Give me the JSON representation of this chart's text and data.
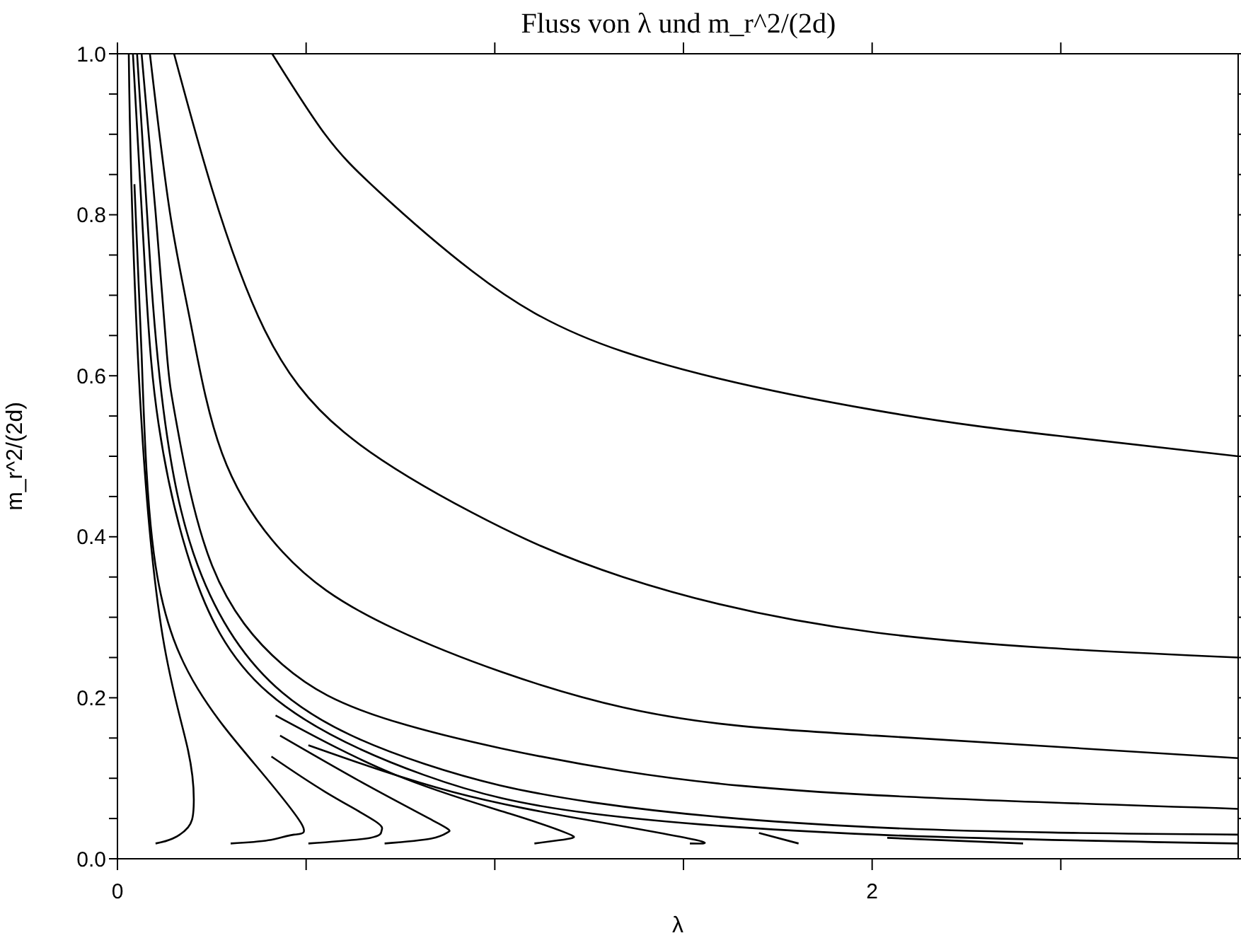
{
  "chart_data": {
    "type": "line",
    "title": "Fluss von λ und m_r^2/(2d)",
    "xlabel": "λ",
    "ylabel": "m_r^2/(2d)",
    "xlim": [
      0,
      2.97
    ],
    "ylim": [
      0,
      1
    ],
    "xticks": [
      0,
      {
        "value": 0.5,
        "label": null
      },
      {
        "value": 1,
        "label": null
      },
      {
        "value": 1.5,
        "label": null
      },
      2,
      {
        "value": 2.5,
        "label": null
      }
    ],
    "yticks": [
      {
        "value": 0,
        "label": "0.0"
      },
      {
        "value": 0.05,
        "label": null
      },
      {
        "value": 0.1,
        "label": null
      },
      {
        "value": 0.15,
        "label": null
      },
      {
        "value": 0.2,
        "label": "0.2"
      },
      {
        "value": 0.25,
        "label": null
      },
      {
        "value": 0.3,
        "label": null
      },
      {
        "value": 0.35,
        "label": null
      },
      {
        "value": 0.4,
        "label": "0.4"
      },
      {
        "value": 0.45,
        "label": null
      },
      {
        "value": 0.5,
        "label": null
      },
      {
        "value": 0.55,
        "label": null
      },
      {
        "value": 0.6,
        "label": "0.6"
      },
      {
        "value": 0.65,
        "label": null
      },
      {
        "value": 0.7,
        "label": null
      },
      {
        "value": 0.75,
        "label": null
      },
      {
        "value": 0.8,
        "label": "0.8"
      },
      {
        "value": 0.85,
        "label": null
      },
      {
        "value": 0.9,
        "label": null
      },
      {
        "value": 0.95,
        "label": null
      },
      {
        "value": 1,
        "label": "1.0"
      }
    ],
    "grid": false,
    "legend": false,
    "marker": "none",
    "line_style": "solid",
    "series": [
      {
        "color": "#000000",
        "x": [
          0.41,
          0.55,
          0.69,
          0.94,
          1.34,
          2.01,
          2.5,
          2.97
        ],
        "values": [
          1.0,
          0.9,
          0.83,
          0.73,
          0.63,
          0.557,
          0.525,
          0.5
        ]
      },
      {
        "color": "#000000",
        "x": [
          0.15,
          0.25,
          0.39,
          0.6,
          0.94,
          1.34,
          2.01,
          2.97
        ],
        "values": [
          1.0,
          0.833,
          0.657,
          0.53,
          0.43,
          0.35,
          0.281,
          0.25
        ]
      },
      {
        "color": "#000000",
        "x": [
          0.086,
          0.139,
          0.195,
          0.277,
          0.438,
          0.737,
          1.34,
          2.01,
          2.97
        ],
        "values": [
          1.0,
          0.803,
          0.663,
          0.504,
          0.381,
          0.285,
          0.188,
          0.153,
          0.125
        ]
      },
      {
        "color": "#000000",
        "x": [
          0.064,
          0.101,
          0.131,
          0.157,
          0.251,
          0.438,
          0.738,
          1.34,
          2.01,
          2.97
        ],
        "values": [
          1.0,
          0.803,
          0.627,
          0.54,
          0.364,
          0.241,
          0.17,
          0.109,
          0.079,
          0.062
        ]
      },
      {
        "color": "#000000",
        "x": [
          0.052,
          0.09,
          0.127,
          0.213,
          0.438,
          0.813,
          1.26,
          2.01,
          2.97
        ],
        "values": [
          1.0,
          0.715,
          0.54,
          0.364,
          0.206,
          0.118,
          0.07,
          0.039,
          0.03
        ]
      },
      {
        "color": "#000000",
        "x": [
          0.041,
          0.075,
          0.109,
          0.195,
          0.4,
          0.813,
          1.26,
          2.01,
          2.97
        ],
        "values": [
          1.0,
          0.715,
          0.54,
          0.364,
          0.206,
          0.104,
          0.056,
          0.03,
          0.019
        ]
      },
      {
        "color": "#000000",
        "x": [
          0.03,
          0.037,
          0.064,
          0.12,
          0.187,
          0.202,
          0.187,
          0.146,
          0.101
        ],
        "values": [
          1.0,
          0.838,
          0.54,
          0.276,
          0.135,
          0.065,
          0.039,
          0.025,
          0.019
        ]
      },
      {
        "color": "#000000",
        "x": [
          0.045,
          0.064,
          0.101,
          0.213,
          0.363,
          0.487,
          0.468,
          0.4,
          0.3
        ],
        "values": [
          0.838,
          0.627,
          0.364,
          0.211,
          0.118,
          0.044,
          0.03,
          0.023,
          0.019
        ]
      },
      {
        "color": "#000000",
        "x": [
          0.408,
          0.551,
          0.682,
          0.7,
          0.67,
          0.506
        ],
        "values": [
          0.127,
          0.083,
          0.047,
          0.035,
          0.026,
          0.019
        ]
      },
      {
        "color": "#000000",
        "x": [
          0.431,
          0.663,
          0.85,
          0.876,
          0.831,
          0.708
        ],
        "values": [
          0.153,
          0.091,
          0.044,
          0.033,
          0.025,
          0.019
        ]
      },
      {
        "color": "#000000",
        "x": [
          0.419,
          0.738,
          1.04,
          1.19,
          1.206,
          1.17,
          1.105
        ],
        "values": [
          0.178,
          0.104,
          0.056,
          0.032,
          0.026,
          0.023,
          0.019
        ]
      },
      {
        "color": "#000000",
        "x": [
          0.506,
          0.888,
          1.26,
          1.536,
          1.517
        ],
        "values": [
          0.141,
          0.083,
          0.047,
          0.023,
          0.019
        ]
      },
      {
        "color": "#000000",
        "x": [
          1.7,
          1.805
        ],
        "values": [
          0.032,
          0.019
        ]
      },
      {
        "color": "#000000",
        "x": [
          2.04,
          2.4
        ],
        "values": [
          0.026,
          0.019
        ]
      }
    ]
  }
}
